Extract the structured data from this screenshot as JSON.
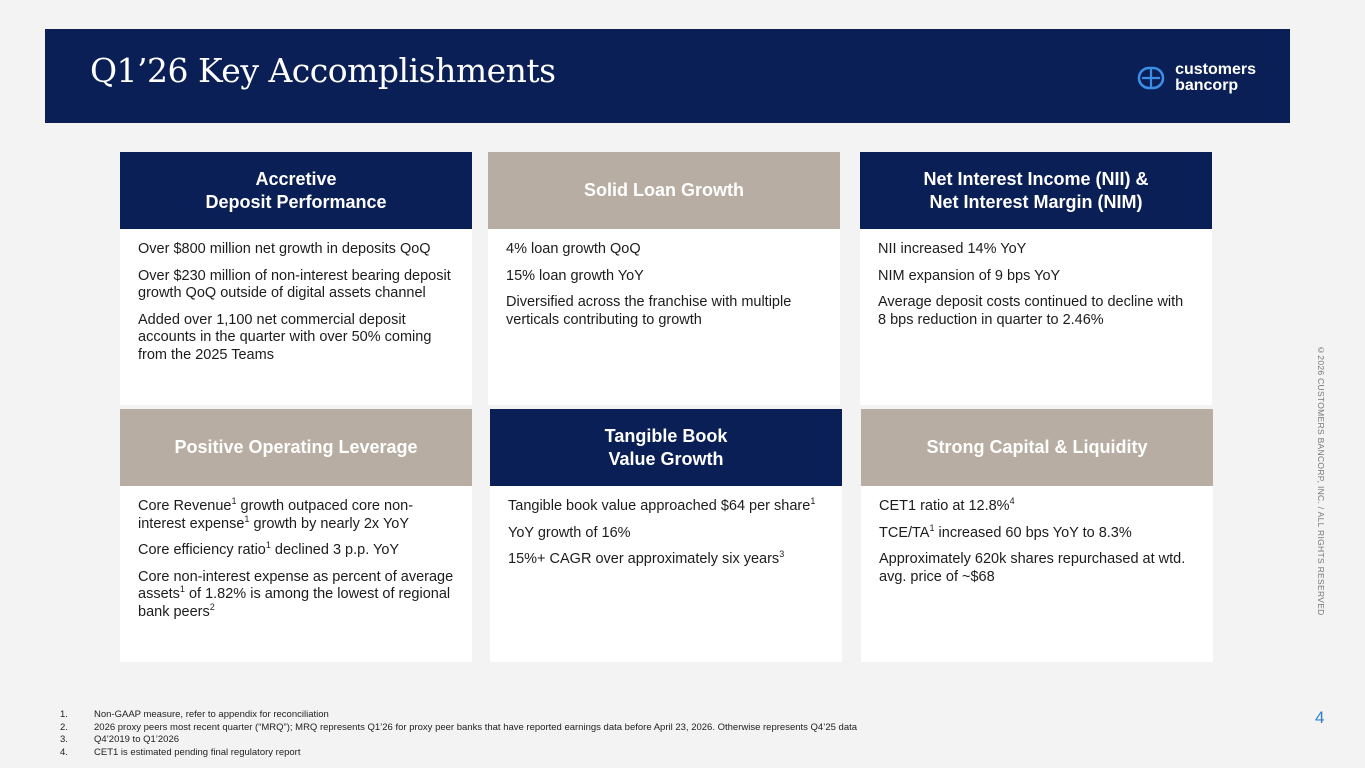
{
  "header": {
    "title": "Q1’26 Key Accomplishments",
    "logo_line1": "customers",
    "logo_line2": "bancorp"
  },
  "cards": [
    {
      "title": "Accretive\nDeposit Performance",
      "bullets": [
        [
          {
            "t": "Over $800 million net growth in deposits QoQ"
          }
        ],
        [
          {
            "t": "Over $230 million of non-interest bearing deposit growth QoQ outside of digital assets channel"
          }
        ],
        [
          {
            "t": "Added over 1,100 net commercial deposit accounts in the quarter with over 50% coming from the 2025 Teams"
          }
        ]
      ]
    },
    {
      "title": "Solid Loan Growth",
      "bullets": [
        [
          {
            "t": "4% loan growth QoQ"
          }
        ],
        [
          {
            "t": "15% loan growth YoY"
          }
        ],
        [
          {
            "t": "Diversified across the franchise with multiple verticals contributing to growth"
          }
        ]
      ]
    },
    {
      "title": "Net Interest Income (NII) &\nNet Interest Margin (NIM)",
      "bullets": [
        [
          {
            "t": "NII increased 14% YoY"
          }
        ],
        [
          {
            "t": "NIM expansion of 9 bps YoY"
          }
        ],
        [
          {
            "t": "Average deposit costs continued to decline with 8 bps reduction in quarter to 2.46%"
          }
        ]
      ]
    },
    {
      "title": "Positive Operating Leverage",
      "bullets": [
        [
          {
            "t": "Core Revenue"
          },
          {
            "s": "1"
          },
          {
            "t": " growth outpaced core non-interest expense"
          },
          {
            "s": "1"
          },
          {
            "t": " growth by nearly 2x YoY"
          }
        ],
        [
          {
            "t": "Core efficiency ratio"
          },
          {
            "s": "1"
          },
          {
            "t": " declined 3 p.p. YoY"
          }
        ],
        [
          {
            "t": "Core non-interest expense as percent of average assets"
          },
          {
            "s": "1"
          },
          {
            "t": " of 1.82% is among the lowest of regional bank peers"
          },
          {
            "s": "2"
          }
        ]
      ]
    },
    {
      "title": "Tangible Book\nValue Growth",
      "bullets": [
        [
          {
            "t": "Tangible book value approached $64 per share"
          },
          {
            "s": "1"
          }
        ],
        [
          {
            "t": "YoY growth of 16%"
          }
        ],
        [
          {
            "t": "15%+ CAGR over approximately six years"
          },
          {
            "s": "3"
          }
        ]
      ]
    },
    {
      "title": "Strong Capital & Liquidity",
      "bullets": [
        [
          {
            "t": "CET1 ratio at 12.8%"
          },
          {
            "s": "4"
          }
        ],
        [
          {
            "t": "TCE/TA"
          },
          {
            "s": "1"
          },
          {
            "t": " increased 60 bps YoY to 8.3%"
          }
        ],
        [
          {
            "t": "Approximately 620k shares repurchased at wtd. avg. price of ~$68"
          }
        ]
      ]
    }
  ],
  "footnotes": [
    {
      "n": "1.",
      "t": "Non-GAAP measure, refer to appendix for reconciliation"
    },
    {
      "n": "2.",
      "t": "2026 proxy peers most recent quarter (“MRQ”); MRQ represents Q1’26 for proxy peer banks that have reported earnings data before April 23, 2026. Otherwise represents Q4’25 data"
    },
    {
      "n": "3.",
      "t": "Q4’2019 to Q1’2026"
    },
    {
      "n": "4.",
      "t": "CET1 is estimated pending final regulatory report"
    }
  ],
  "copyright": "©2026 CUSTOMERS BANCORP, INC. / ALL RIGHTS RESERVED",
  "page_number": "4",
  "colors": {
    "navy": "#0b1f57",
    "tan": "#b8ada2",
    "accent": "#2f80d4"
  }
}
